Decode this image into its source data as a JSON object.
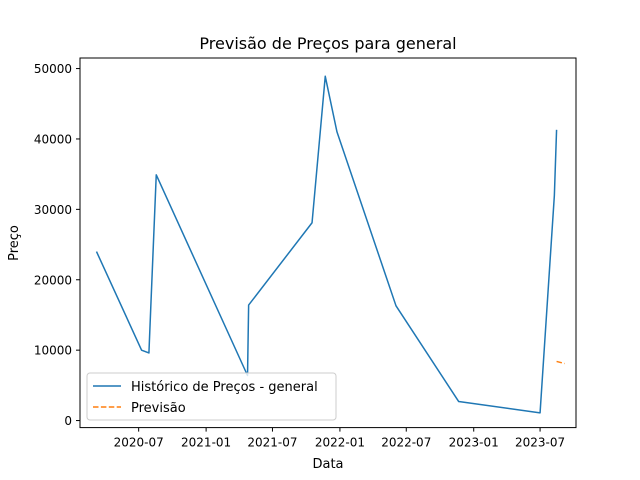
{
  "chart_data": {
    "type": "line",
    "title": "Previsão de Preços para general",
    "xlabel": "Data",
    "ylabel": "Preço",
    "xlim": [
      "2020-01-23",
      "2023-10-07"
    ],
    "ylim": [
      -1000,
      51500
    ],
    "x_ticks": [
      {
        "date": "2020-07-01",
        "label": "2020-07"
      },
      {
        "date": "2021-01-01",
        "label": "2021-01"
      },
      {
        "date": "2021-07-01",
        "label": "2021-07"
      },
      {
        "date": "2022-01-01",
        "label": "2022-01"
      },
      {
        "date": "2022-07-01",
        "label": "2022-07"
      },
      {
        "date": "2023-01-01",
        "label": "2023-01"
      },
      {
        "date": "2023-07-01",
        "label": "2023-07"
      }
    ],
    "y_ticks": [
      0,
      10000,
      20000,
      30000,
      40000,
      50000
    ],
    "grid": false,
    "legend_position": "lower-left",
    "series": [
      {
        "name": "Histórico de Preços - general",
        "color": "#1f77b4",
        "style": "solid",
        "points": [
          {
            "x": "2020-03-08",
            "y": 24000
          },
          {
            "x": "2020-07-09",
            "y": 10000
          },
          {
            "x": "2020-07-29",
            "y": 9600
          },
          {
            "x": "2020-08-03",
            "y": 16000
          },
          {
            "x": "2020-08-18",
            "y": 34900
          },
          {
            "x": "2021-04-24",
            "y": 6400
          },
          {
            "x": "2021-04-27",
            "y": 16400
          },
          {
            "x": "2021-10-17",
            "y": 28100
          },
          {
            "x": "2021-11-22",
            "y": 48900
          },
          {
            "x": "2021-12-24",
            "y": 41000
          },
          {
            "x": "2022-06-03",
            "y": 16300
          },
          {
            "x": "2022-11-21",
            "y": 2700
          },
          {
            "x": "2023-07-01",
            "y": 1100
          },
          {
            "x": "2023-08-09",
            "y": 32000
          },
          {
            "x": "2023-08-15",
            "y": 41300
          }
        ]
      },
      {
        "name": "Previsão",
        "color": "#ff7f0e",
        "style": "dashed",
        "points": [
          {
            "x": "2023-08-15",
            "y": 8400
          },
          {
            "x": "2023-09-06",
            "y": 8100
          }
        ]
      }
    ]
  }
}
